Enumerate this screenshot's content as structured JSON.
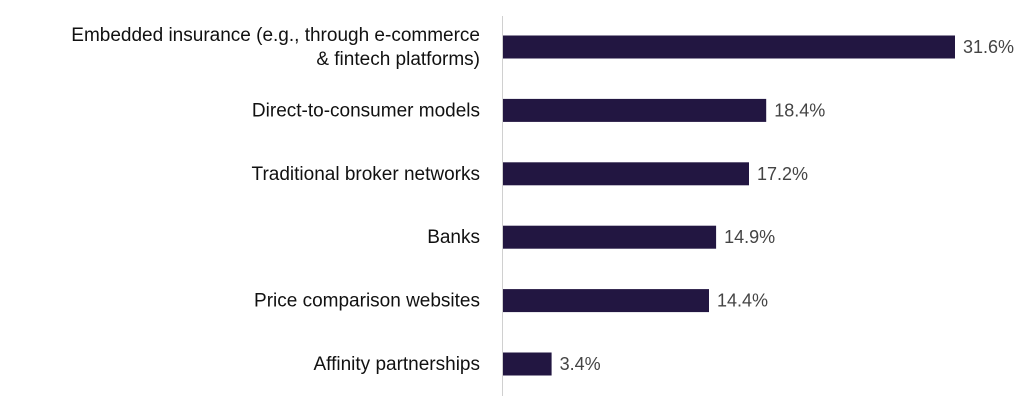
{
  "chart_data": {
    "type": "bar",
    "orientation": "horizontal",
    "title": "",
    "xlabel": "",
    "ylabel": "",
    "categories": [
      [
        "Embedded insurance (e.g., through e-commerce",
        "& fintech platforms)"
      ],
      [
        "Direct-to-consumer models"
      ],
      [
        "Traditional broker networks"
      ],
      [
        "Banks"
      ],
      [
        "Price comparison websites"
      ],
      [
        "Affinity partnerships"
      ]
    ],
    "values": [
      31.6,
      18.4,
      17.2,
      14.9,
      14.4,
      3.4
    ],
    "value_labels": [
      "31.6%",
      "18.4%",
      "17.2%",
      "14.9%",
      "14.4%",
      "3.4%"
    ],
    "xlim": [
      0,
      31.6
    ],
    "grid": false,
    "legend": "none",
    "bar_color": "#221641",
    "axis_color": "#d0d0d0"
  }
}
